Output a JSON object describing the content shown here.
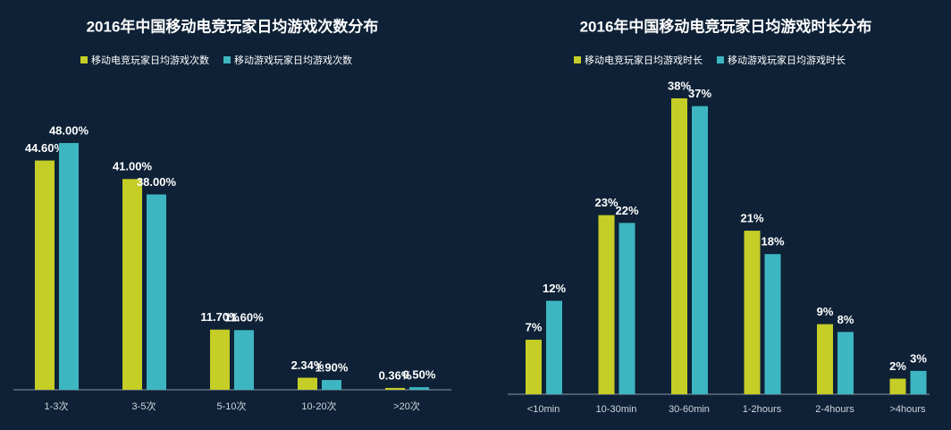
{
  "chart_data": [
    {
      "type": "bar",
      "title": "2016年中国移动电竞玩家日均游戏次数分布",
      "categories": [
        "1-3次",
        "3-5次",
        "5-10次",
        "10-20次",
        ">20次"
      ],
      "series": [
        {
          "name": "移动电竞玩家日均游戏次数",
          "color": "#c5cd27",
          "values": [
            44.6,
            41.0,
            11.7,
            2.34,
            0.36
          ],
          "value_labels": [
            "44.60%",
            "41.00%",
            "11.70%",
            "2.34%",
            "0.36%"
          ]
        },
        {
          "name": "移动游戏玩家日均游戏次数",
          "color": "#3db6c2",
          "values": [
            48.0,
            38.0,
            11.6,
            1.9,
            0.5
          ],
          "value_labels": [
            "48.00%",
            "38.00%",
            "11.60%",
            "1.90%",
            "0.50%"
          ]
        }
      ]
    },
    {
      "type": "bar",
      "title": "2016年中国移动电竞玩家日均游戏时长分布",
      "categories": [
        "<10min",
        "10-30min",
        "30-60min",
        "1-2hours",
        "2-4hours",
        ">4hours"
      ],
      "series": [
        {
          "name": "移动电竞玩家日均游戏时长",
          "color": "#c5cd27",
          "values": [
            7,
            23,
            38,
            21,
            9,
            2
          ],
          "value_labels": [
            "7%",
            "23%",
            "38%",
            "21%",
            "9%",
            "2%"
          ]
        },
        {
          "name": "移动游戏玩家日均游戏时长",
          "color": "#3db6c2",
          "values": [
            12,
            22,
            37,
            18,
            8,
            3
          ],
          "value_labels": [
            "12%",
            "22%",
            "37%",
            "18%",
            "8%",
            "3%"
          ]
        }
      ]
    }
  ]
}
